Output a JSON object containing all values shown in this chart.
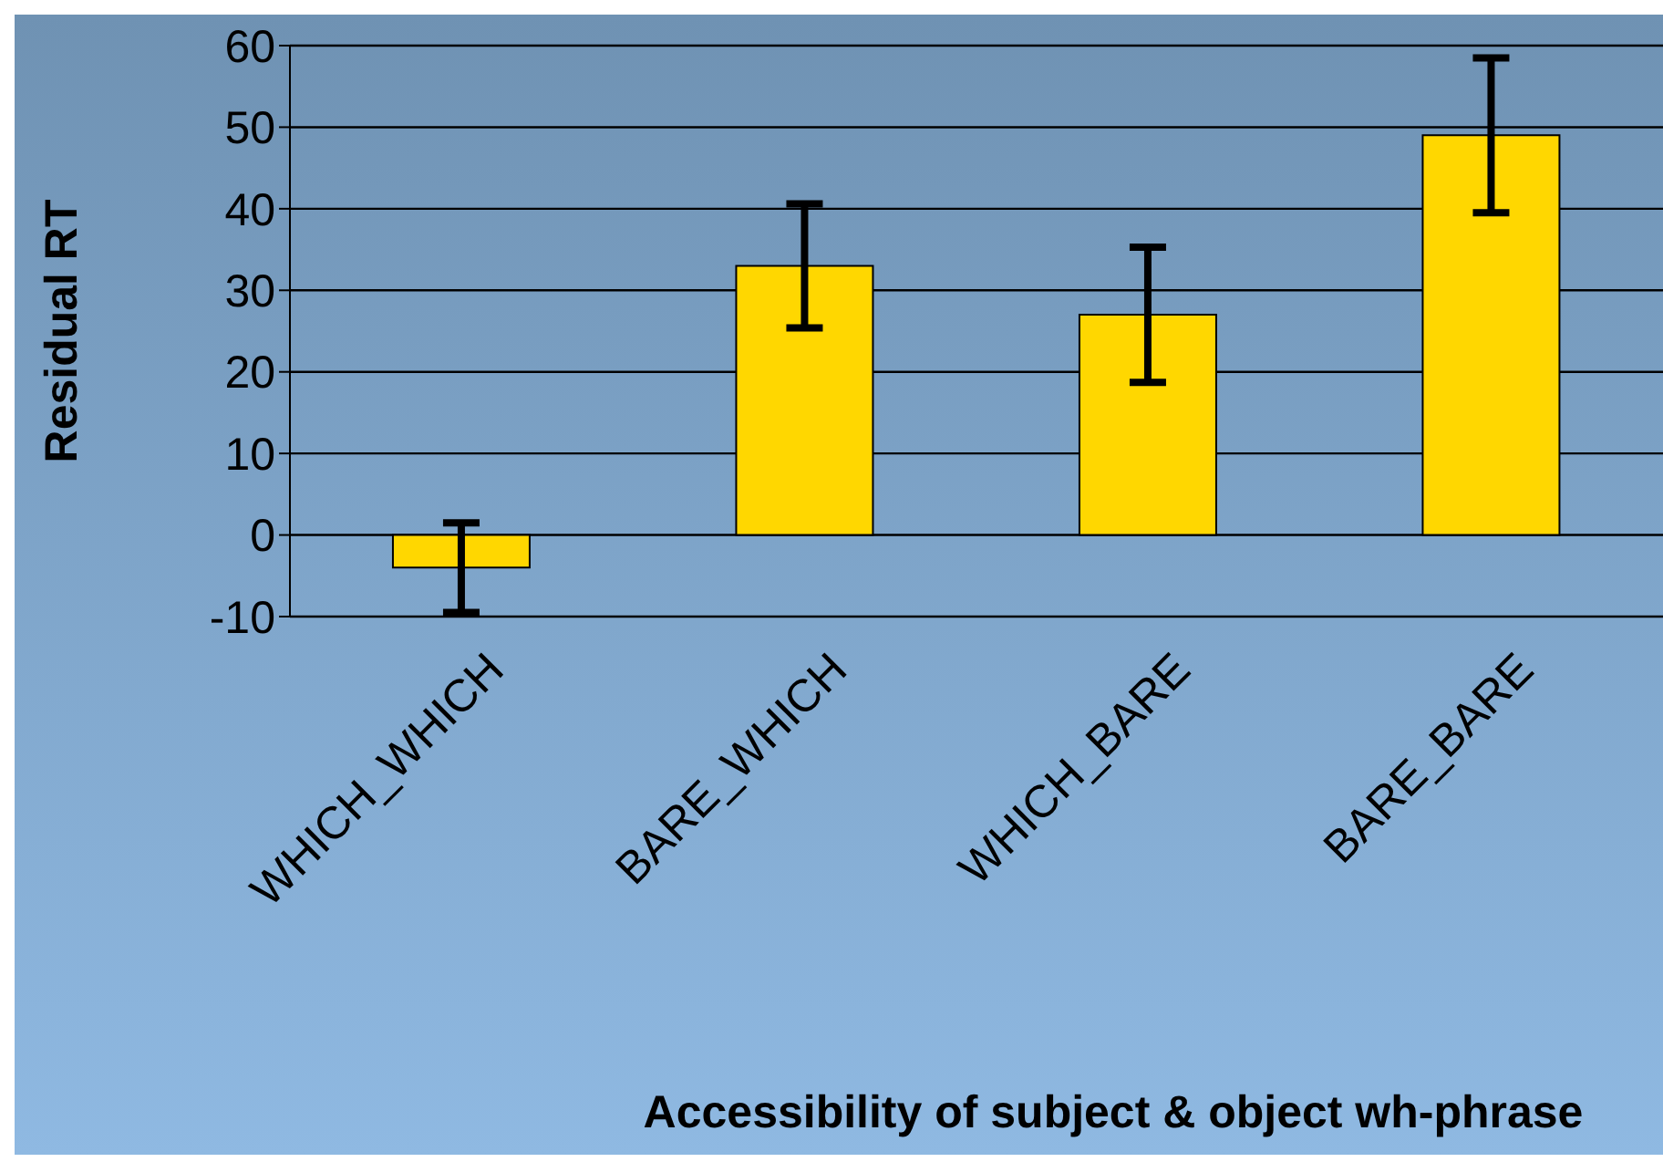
{
  "chart_data": {
    "type": "bar",
    "xlabel": "Accessibility of subject & object wh-phrase",
    "ylabel": "Residual RT",
    "categories": [
      "WHICH_WHICH",
      "BARE_WHICH",
      "WHICH_BARE",
      "BARE_BARE"
    ],
    "values": [
      -4,
      33,
      27,
      49
    ],
    "errors": [
      5.5,
      7.6,
      8.3,
      9.5
    ],
    "color": "#ffd700",
    "ylim": [
      -10,
      60
    ],
    "yticks": [
      -10,
      0,
      10,
      20,
      30,
      40,
      50,
      60
    ],
    "grid": "y",
    "legend": false
  }
}
